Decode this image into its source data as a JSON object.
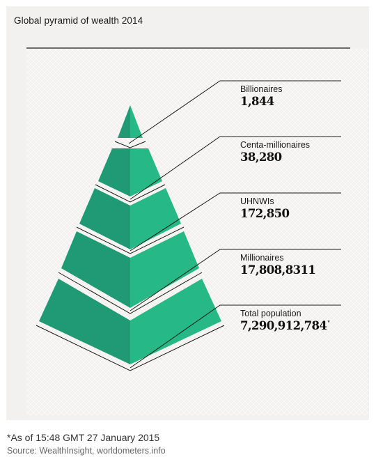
{
  "title": "Global pyramid of wealth 2014",
  "colors": {
    "panel_background": "#f2f1ef",
    "tier_left_face": "#1f9a74",
    "tier_right_face": "#27b887",
    "ink": "#1a1a1a",
    "source_text": "#666666"
  },
  "tiers": [
    {
      "label": "Billionaires",
      "value": "1,844"
    },
    {
      "label": "Centa-millionaires",
      "value": "38,280"
    },
    {
      "label": "UHNWIs",
      "value": "172,850"
    },
    {
      "label": "Millionaires",
      "value": "17,808,8311"
    },
    {
      "label": "Total population",
      "value": "7,290,912,784",
      "marker": "*"
    }
  ],
  "footnote": "*As of 15:48 GMT 27 January 2015",
  "source": "Source: WealthInsight, worldometers.info"
}
